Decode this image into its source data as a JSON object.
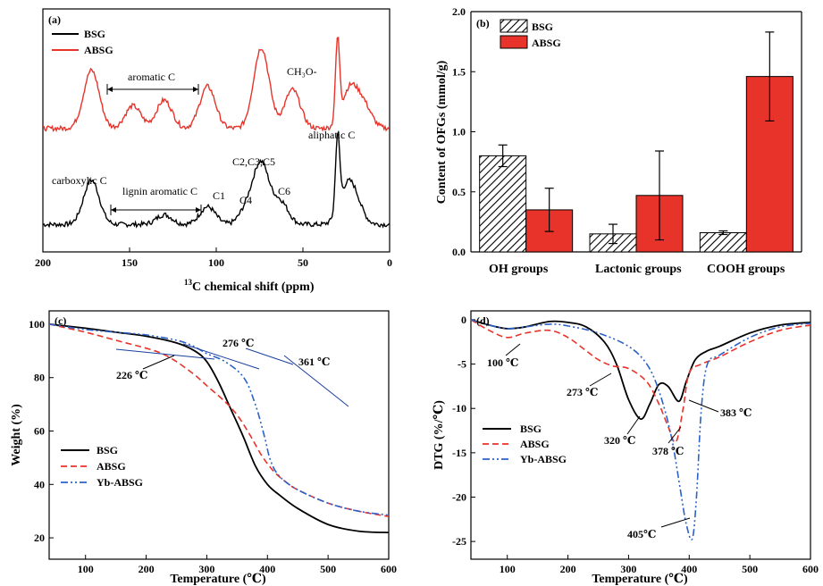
{
  "chart_data": [
    {
      "panel": "(a)",
      "type": "line",
      "xlabel_sup": "13",
      "xlabel": "C chemical shift (ppm)",
      "xlim": [
        200,
        0
      ],
      "xticks": [
        200,
        150,
        100,
        50,
        0
      ],
      "legend": [
        "BSG",
        "ABSG"
      ],
      "legend_position": "top-left",
      "colors": {
        "BSG": "#000000",
        "ABSG": "#e8332a"
      },
      "series": [
        {
          "name": "BSG",
          "peaks": [
            [
              172,
              0.55
            ],
            [
              130,
              0.12
            ],
            [
              105,
              0.22
            ],
            [
              82,
              0.2
            ],
            [
              74,
              0.73
            ],
            [
              63,
              0.28
            ],
            [
              30,
              0.92
            ],
            [
              25,
              0.38
            ],
            [
              20,
              0.25
            ]
          ],
          "baseline": 0.05
        },
        {
          "name": "ABSG",
          "peaks": [
            [
              172,
              0.72
            ],
            [
              148,
              0.28
            ],
            [
              130,
              0.35
            ],
            [
              105,
              0.52
            ],
            [
              74,
              1.0
            ],
            [
              56,
              0.48
            ],
            [
              30,
              1.0
            ],
            [
              23,
              0.48
            ],
            [
              15,
              0.28
            ]
          ],
          "baseline": 0.55
        }
      ],
      "annotations": [
        "aromatic C",
        "CH₃O-",
        "carboxylic C",
        "lignin aromatic C",
        "C1",
        "C4",
        "C2,C3,C5",
        "C6",
        "aliphatic C"
      ]
    },
    {
      "panel": "(b)",
      "type": "bar",
      "ylabel": "Content of OFGs (mmol/g)",
      "ylim": [
        0,
        2.0
      ],
      "yticks": [
        "0.0",
        "0.5",
        "1.0",
        "1.5",
        "2.0"
      ],
      "categories": [
        "OH groups",
        "Lactonic groups",
        "COOH groups"
      ],
      "legend_position": "top-left",
      "series": [
        {
          "name": "BSG",
          "values": [
            0.8,
            0.15,
            0.16
          ],
          "errors": [
            0.09,
            0.08,
            0.015
          ],
          "pattern": "hatched"
        },
        {
          "name": "ABSG",
          "values": [
            0.35,
            0.47,
            1.46
          ],
          "errors": [
            0.18,
            0.37,
            0.37
          ],
          "color": "#e8332a"
        }
      ]
    },
    {
      "panel": "(c)",
      "type": "line",
      "xlabel": "Temperature (℃)",
      "ylabel": "Weight (%)",
      "xlim": [
        40,
        600
      ],
      "ylim": [
        12,
        105
      ],
      "xticks": [
        100,
        200,
        300,
        400,
        500,
        600
      ],
      "yticks": [
        20,
        40,
        60,
        80,
        100
      ],
      "legend_position": "bottom-left",
      "series": [
        {
          "name": "BSG",
          "color": "#000000",
          "style": "solid",
          "x": [
            40,
            100,
            150,
            200,
            250,
            280,
            300,
            320,
            340,
            360,
            380,
            400,
            420,
            450,
            500,
            550,
            600
          ],
          "y": [
            100,
            98.5,
            97.0,
            95.5,
            93.0,
            90.0,
            86.0,
            78.0,
            68.0,
            58.0,
            47.0,
            40.0,
            36.0,
            31.0,
            25.0,
            22.5,
            22.0
          ]
        },
        {
          "name": "ABSG",
          "color": "#e8332a",
          "style": "dashed",
          "x": [
            40,
            100,
            150,
            200,
            226,
            250,
            280,
            300,
            330,
            350,
            370,
            390,
            410,
            430,
            450,
            500,
            550,
            600
          ],
          "y": [
            100,
            97.0,
            94.0,
            91.0,
            89.0,
            86.0,
            81.0,
            77.0,
            71.0,
            66.0,
            59.0,
            51.0,
            45.0,
            41.0,
            38.0,
            33.0,
            30.0,
            28.0
          ]
        },
        {
          "name": "Yb-ABSG",
          "color": "#2a62c9",
          "style": "dashdotdot",
          "x": [
            40,
            100,
            150,
            200,
            250,
            276,
            300,
            330,
            361,
            380,
            395,
            405,
            420,
            450,
            500,
            550,
            600
          ],
          "y": [
            100,
            98.0,
            97.0,
            96.0,
            94.0,
            92.0,
            89.0,
            86.0,
            80.0,
            70.0,
            58.0,
            49.0,
            43.0,
            38.0,
            33.0,
            30.0,
            28.5
          ]
        }
      ],
      "annotations": [
        "276 ℃",
        "361 ℃",
        "226 ℃"
      ]
    },
    {
      "panel": "(d)",
      "type": "line",
      "xlabel": "Temperature (℃)",
      "ylabel": "DTG (%/℃)",
      "xlim": [
        40,
        600
      ],
      "ylim": [
        -27,
        1
      ],
      "xticks": [
        100,
        200,
        300,
        400,
        500,
        600
      ],
      "yticks": [
        0,
        -5,
        -10,
        -15,
        -20,
        -25
      ],
      "legend_position": "bottom-left",
      "series": [
        {
          "name": "BSG",
          "color": "#000000",
          "style": "solid",
          "x": [
            40,
            70,
            100,
            130,
            170,
            200,
            230,
            260,
            280,
            300,
            320,
            335,
            350,
            365,
            383,
            395,
            410,
            430,
            450,
            500,
            550,
            600
          ],
          "y": [
            0,
            -0.6,
            -1.0,
            -0.8,
            -0.2,
            -0.3,
            -0.8,
            -2.5,
            -5.0,
            -9.0,
            -11.2,
            -9.5,
            -7.3,
            -7.5,
            -9.2,
            -7.0,
            -4.5,
            -3.5,
            -3.0,
            -1.5,
            -0.6,
            -0.3
          ]
        },
        {
          "name": "ABSG",
          "color": "#e8332a",
          "style": "dashed",
          "x": [
            40,
            70,
            100,
            130,
            170,
            200,
            230,
            250,
            273,
            300,
            330,
            350,
            365,
            378,
            390,
            400,
            420,
            450,
            500,
            550,
            600
          ],
          "y": [
            0,
            -1.2,
            -2.0,
            -1.5,
            -1.2,
            -2.0,
            -3.5,
            -4.5,
            -5.2,
            -5.5,
            -7.0,
            -9.5,
            -12.0,
            -13.8,
            -10.0,
            -6.0,
            -5.0,
            -4.2,
            -2.5,
            -1.2,
            -0.6
          ]
        },
        {
          "name": "Yb-ABSG",
          "color": "#2a62c9",
          "style": "dashdotdot",
          "x": [
            40,
            70,
            100,
            130,
            170,
            200,
            250,
            300,
            330,
            350,
            370,
            385,
            395,
            405,
            412,
            420,
            430,
            450,
            500,
            550,
            600
          ],
          "y": [
            0,
            -0.6,
            -1.0,
            -0.8,
            -0.5,
            -0.7,
            -1.5,
            -3.0,
            -5.0,
            -8.0,
            -13.0,
            -19.0,
            -23.0,
            -24.7,
            -20.0,
            -10.0,
            -5.0,
            -4.0,
            -2.0,
            -0.8,
            -0.4
          ]
        }
      ],
      "annotations": [
        "100 ℃",
        "273 ℃",
        "320 ℃",
        "378 ℃",
        "383 ℃",
        "405℃"
      ]
    }
  ],
  "labels": {
    "a": {
      "panel": "(a)",
      "legend_bsg": "BSG",
      "legend_absg": "ABSG",
      "sup": "13",
      "xlabel": "C chemical shift (ppm)",
      "ticks": [
        "200",
        "150",
        "100",
        "50",
        "0"
      ],
      "aromatic": "aromatic C",
      "ch3o": "CH₃O-",
      "carboxylic": "carboxylic C",
      "lignin": "lignin aromatic C",
      "c1": "C1",
      "c4": "C4",
      "c235": "C2,C3,C5",
      "c6": "C6",
      "aliphatic": "aliphatic C"
    },
    "b": {
      "panel": "(b)",
      "legend_bsg": "BSG",
      "legend_absg": "ABSG",
      "ylabel": "Content of OFGs (mmol/g)",
      "cat_oh": "OH groups",
      "cat_lac": "Lactonic groups",
      "cat_cooh": "COOH groups"
    },
    "c": {
      "panel": "(c)",
      "xlabel": "Temperature (℃)",
      "ylabel": "Weight (%)",
      "leg1": "BSG",
      "leg2": "ABSG",
      "leg3": "Yb-ABSG",
      "an276": "276 ℃",
      "an361": "361 ℃",
      "an226": "226 ℃"
    },
    "d": {
      "panel": "(d)",
      "xlabel": "Temperature (℃)",
      "ylabel": "DTG (%/℃)",
      "leg1": "BSG",
      "leg2": "ABSG",
      "leg3": "Yb-ABSG",
      "an100": "100 ℃",
      "an273": "273 ℃",
      "an320": "320 ℃",
      "an378": "378 ℃",
      "an383": "383 ℃",
      "an405": "405℃"
    }
  }
}
